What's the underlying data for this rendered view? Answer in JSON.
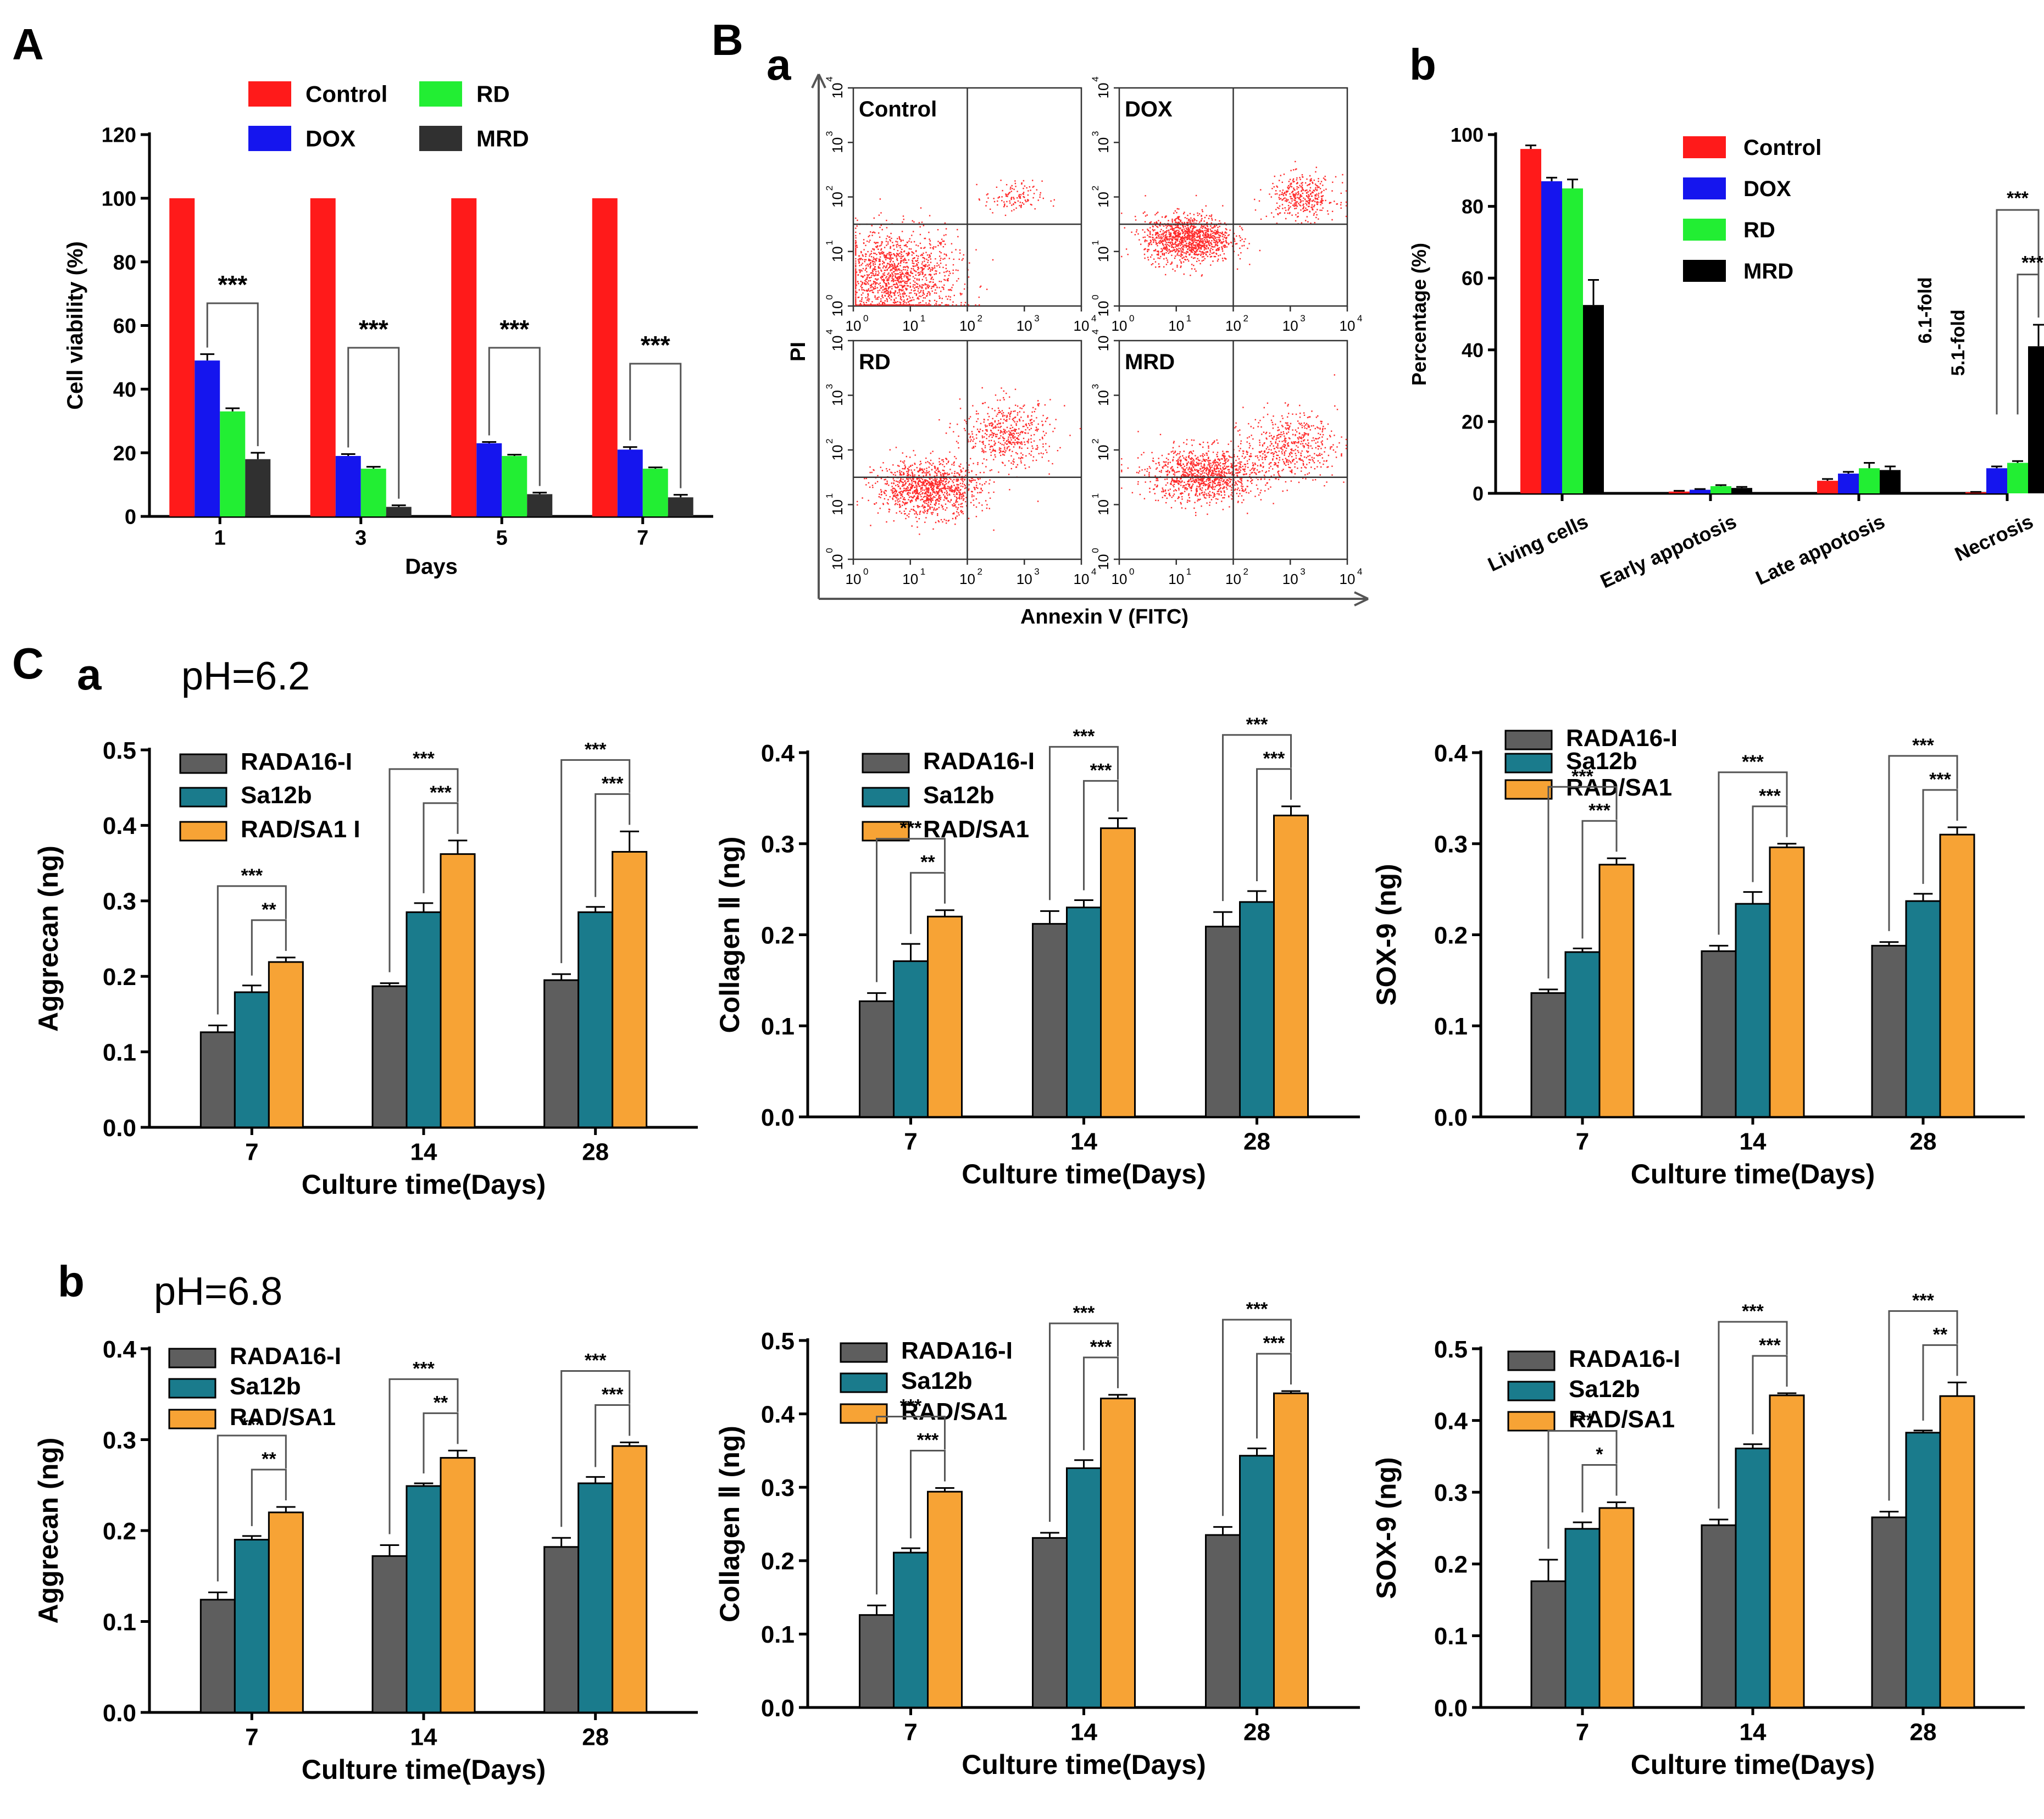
{
  "panel_labels": {
    "A": "A",
    "B": "B",
    "Ba": "a",
    "Bb": "b",
    "C": "C",
    "Ca": "a",
    "Cb": "b"
  },
  "ph_labels": {
    "a": "pH=6.2",
    "b": "pH=6.8"
  },
  "colors": {
    "control": "#ff1a1a",
    "dox": "#1515ee",
    "rd": "#22ee33",
    "mrd": "#303030",
    "mrd_b": "#000000",
    "rada": "#5e5e5e",
    "sa12b": "#1a7b8c",
    "radsa1": "#f7a335",
    "flow": "#ff2a2a"
  },
  "chart_data": [
    {
      "id": "A",
      "type": "bar",
      "title": "",
      "xlabel": "Days",
      "ylabel": "Cell viability (%)",
      "ylim": [
        0,
        120
      ],
      "yticks": [
        "0",
        "20",
        "40",
        "60",
        "80",
        "100",
        "120"
      ],
      "categories": [
        "1",
        "3",
        "5",
        "7"
      ],
      "legend_position": "top",
      "series": [
        {
          "name": "Control",
          "values": [
            100,
            100,
            100,
            100
          ],
          "errors": [
            0,
            0,
            0,
            0
          ]
        },
        {
          "name": "DOX",
          "values": [
            49,
            19,
            23,
            21
          ],
          "errors": [
            2,
            0.6,
            0.4,
            0.8
          ]
        },
        {
          "name": "RD",
          "values": [
            33,
            15,
            19,
            15
          ],
          "errors": [
            1,
            0.6,
            0.4,
            0.4
          ]
        },
        {
          "name": "MRD",
          "values": [
            18,
            3,
            7,
            6
          ],
          "errors": [
            2,
            0.5,
            0.5,
            0.8
          ]
        }
      ],
      "annotations": [
        {
          "text": "***",
          "category": 0
        },
        {
          "text": "***",
          "category": 1
        },
        {
          "text": "***",
          "category": 2
        },
        {
          "text": "***",
          "category": 3
        }
      ]
    },
    {
      "id": "Ba",
      "type": "scatter",
      "title": "",
      "xlabel": "Annexin V (FITC)",
      "ylabel": "PI",
      "axis_range": [
        0,
        4
      ],
      "ticks": [
        "10",
        "10",
        "10",
        "10",
        "10"
      ],
      "tick_exponents": [
        "0",
        "1",
        "2",
        "3",
        "4"
      ],
      "quadrant_lines": {
        "x": 2,
        "y": 1.5
      },
      "plots": [
        {
          "name": "Control",
          "clusters": [
            {
              "cx": 0.7,
              "cy": 0.5,
              "sx": 0.55,
              "sy": 0.45,
              "n": 1500
            },
            {
              "cx": 2.8,
              "cy": 2.0,
              "sx": 0.25,
              "sy": 0.15,
              "n": 120
            }
          ]
        },
        {
          "name": "DOX",
          "clusters": [
            {
              "cx": 1.2,
              "cy": 1.25,
              "sx": 0.38,
              "sy": 0.22,
              "n": 1200
            },
            {
              "cx": 3.2,
              "cy": 2.0,
              "sx": 0.3,
              "sy": 0.2,
              "n": 380
            }
          ]
        },
        {
          "name": "RD",
          "clusters": [
            {
              "cx": 1.3,
              "cy": 1.3,
              "sx": 0.45,
              "sy": 0.25,
              "n": 1100
            },
            {
              "cx": 2.7,
              "cy": 2.3,
              "sx": 0.4,
              "sy": 0.3,
              "n": 500
            }
          ]
        },
        {
          "name": "MRD",
          "clusters": [
            {
              "cx": 1.5,
              "cy": 1.55,
              "sx": 0.5,
              "sy": 0.25,
              "n": 1100
            },
            {
              "cx": 3.0,
              "cy": 2.1,
              "sx": 0.4,
              "sy": 0.3,
              "n": 500
            }
          ]
        }
      ]
    },
    {
      "id": "Bb",
      "type": "bar",
      "title": "",
      "xlabel": "",
      "ylabel": "Percentage (%)",
      "ylim": [
        0,
        100
      ],
      "yticks": [
        "0",
        "20",
        "40",
        "60",
        "80",
        "100"
      ],
      "categories": [
        "Living cells",
        "Early appotosis",
        "Late appotosis",
        "Necrosis"
      ],
      "legend_position": "top-right",
      "series": [
        {
          "name": "Control",
          "values": [
            96,
            0.5,
            3.5,
            0.3
          ],
          "errors": [
            1,
            0.2,
            0.5,
            0.1
          ]
        },
        {
          "name": "DOX",
          "values": [
            87,
            1,
            5.5,
            7
          ],
          "errors": [
            1,
            0.2,
            0.5,
            0.5
          ]
        },
        {
          "name": "RD",
          "values": [
            85,
            2,
            7,
            8.5
          ],
          "errors": [
            2.5,
            0.3,
            1.5,
            0.5
          ]
        },
        {
          "name": "MRD",
          "values": [
            52.5,
            1.5,
            6.5,
            41
          ],
          "errors": [
            7,
            0.3,
            1,
            6
          ]
        }
      ],
      "annotations": [
        "***",
        "***",
        "6.1-fold",
        "5.1-fold"
      ]
    },
    {
      "id": "Ca1",
      "type": "bar",
      "xlabel": "Culture time(Days)",
      "ylabel": "Aggrecan (ng)",
      "ylim": [
        0,
        0.5
      ],
      "yticks": [
        "0.0",
        "0.1",
        "0.2",
        "0.3",
        "0.4",
        "0.5"
      ],
      "categories": [
        "7",
        "14",
        "28"
      ],
      "series": [
        {
          "name": "RADA16-I",
          "values": [
            0.126,
            0.187,
            0.195
          ],
          "errors": [
            0.009,
            0.004,
            0.008
          ]
        },
        {
          "name": "Sa12b",
          "values": [
            0.179,
            0.285,
            0.285
          ],
          "errors": [
            0.009,
            0.012,
            0.007
          ]
        },
        {
          "name": "RAD/SA1   I",
          "values": [
            0.219,
            0.362,
            0.365
          ],
          "errors": [
            0.006,
            0.018,
            0.027
          ]
        }
      ],
      "significance": [
        [
          "***",
          "**"
        ],
        [
          "***",
          "***"
        ],
        [
          "***",
          "***"
        ]
      ]
    },
    {
      "id": "Ca2",
      "type": "bar",
      "xlabel": "Culture time(Days)",
      "ylabel": "Collagen Ⅱ (ng)",
      "ylim": [
        0,
        0.4
      ],
      "yticks": [
        "0.0",
        "0.1",
        "0.2",
        "0.3",
        "0.4"
      ],
      "categories": [
        "7",
        "14",
        "28"
      ],
      "series": [
        {
          "name": "RADA16-I",
          "values": [
            0.127,
            0.212,
            0.209
          ],
          "errors": [
            0.009,
            0.014,
            0.016
          ]
        },
        {
          "name": "Sa12b",
          "values": [
            0.171,
            0.23,
            0.236
          ],
          "errors": [
            0.019,
            0.008,
            0.012
          ]
        },
        {
          "name": "RAD/SA1",
          "values": [
            0.22,
            0.317,
            0.331
          ],
          "errors": [
            0.007,
            0.011,
            0.01
          ]
        }
      ],
      "significance": [
        [
          "***",
          "**"
        ],
        [
          "***",
          "***"
        ],
        [
          "***",
          "***"
        ]
      ]
    },
    {
      "id": "Ca3",
      "type": "bar",
      "xlabel": "Culture time(Days)",
      "ylabel": "SOX-9 (ng)",
      "ylim": [
        0,
        0.4
      ],
      "yticks": [
        "0.0",
        "0.1",
        "0.2",
        "0.3",
        "0.4"
      ],
      "categories": [
        "7",
        "14",
        "28"
      ],
      "series": [
        {
          "name": "RADA16-I",
          "values": [
            0.136,
            0.182,
            0.188
          ],
          "errors": [
            0.004,
            0.006,
            0.004
          ]
        },
        {
          "name": "Sa12b",
          "values": [
            0.181,
            0.234,
            0.237
          ],
          "errors": [
            0.004,
            0.013,
            0.008
          ]
        },
        {
          "name": "RAD/SA1",
          "values": [
            0.277,
            0.296,
            0.31
          ],
          "errors": [
            0.007,
            0.004,
            0.008
          ]
        }
      ],
      "significance": [
        [
          "***",
          "***"
        ],
        [
          "***",
          "***"
        ],
        [
          "***",
          "***"
        ]
      ]
    },
    {
      "id": "Cb1",
      "type": "bar",
      "xlabel": "Culture time(Days)",
      "ylabel": "Aggrecan (ng)",
      "ylim": [
        0,
        0.4
      ],
      "yticks": [
        "0.0",
        "0.1",
        "0.2",
        "0.3",
        "0.4"
      ],
      "categories": [
        "7",
        "14",
        "28"
      ],
      "series": [
        {
          "name": "RADA16-I",
          "values": [
            0.124,
            0.172,
            0.182
          ],
          "errors": [
            0.008,
            0.012,
            0.01
          ]
        },
        {
          "name": "Sa12b",
          "values": [
            0.19,
            0.249,
            0.252
          ],
          "errors": [
            0.004,
            0.003,
            0.007
          ]
        },
        {
          "name": "RAD/SA1",
          "values": [
            0.22,
            0.28,
            0.293
          ],
          "errors": [
            0.006,
            0.008,
            0.004
          ]
        }
      ],
      "significance": [
        [
          "***",
          "**"
        ],
        [
          "***",
          "**"
        ],
        [
          "***",
          "***"
        ]
      ]
    },
    {
      "id": "Cb2",
      "type": "bar",
      "xlabel": "Culture time(Days)",
      "ylabel": "Collagen Ⅱ (ng)",
      "ylim": [
        0,
        0.5
      ],
      "yticks": [
        "0.0",
        "0.1",
        "0.2",
        "0.3",
        "0.4",
        "0.5"
      ],
      "categories": [
        "7",
        "14",
        "28"
      ],
      "series": [
        {
          "name": "RADA16-I",
          "values": [
            0.126,
            0.231,
            0.235
          ],
          "errors": [
            0.013,
            0.007,
            0.011
          ]
        },
        {
          "name": "Sa12b",
          "values": [
            0.211,
            0.326,
            0.343
          ],
          "errors": [
            0.006,
            0.011,
            0.01
          ]
        },
        {
          "name": "RAD/SA1",
          "values": [
            0.294,
            0.421,
            0.428
          ],
          "errors": [
            0.005,
            0.005,
            0.003
          ]
        }
      ],
      "significance": [
        [
          "***",
          "***"
        ],
        [
          "***",
          "***"
        ],
        [
          "***",
          "***"
        ]
      ]
    },
    {
      "id": "Cb3",
      "type": "bar",
      "xlabel": "Culture time(Days)",
      "ylabel": "SOX-9 (ng)",
      "ylim": [
        0,
        0.5
      ],
      "yticks": [
        "0.0",
        "0.1",
        "0.2",
        "0.3",
        "0.4",
        "0.5"
      ],
      "categories": [
        "7",
        "14",
        "28"
      ],
      "series": [
        {
          "name": "RADA16-I",
          "values": [
            0.176,
            0.254,
            0.265
          ],
          "errors": [
            0.03,
            0.008,
            0.008
          ]
        },
        {
          "name": "Sa12b",
          "values": [
            0.249,
            0.361,
            0.383
          ],
          "errors": [
            0.009,
            0.006,
            0.003
          ]
        },
        {
          "name": "RAD/SA1",
          "values": [
            0.278,
            0.435,
            0.434
          ],
          "errors": [
            0.008,
            0.003,
            0.019
          ]
        }
      ],
      "significance": [
        [
          "***",
          "*"
        ],
        [
          "***",
          "***"
        ],
        [
          "***",
          "**"
        ]
      ]
    }
  ]
}
